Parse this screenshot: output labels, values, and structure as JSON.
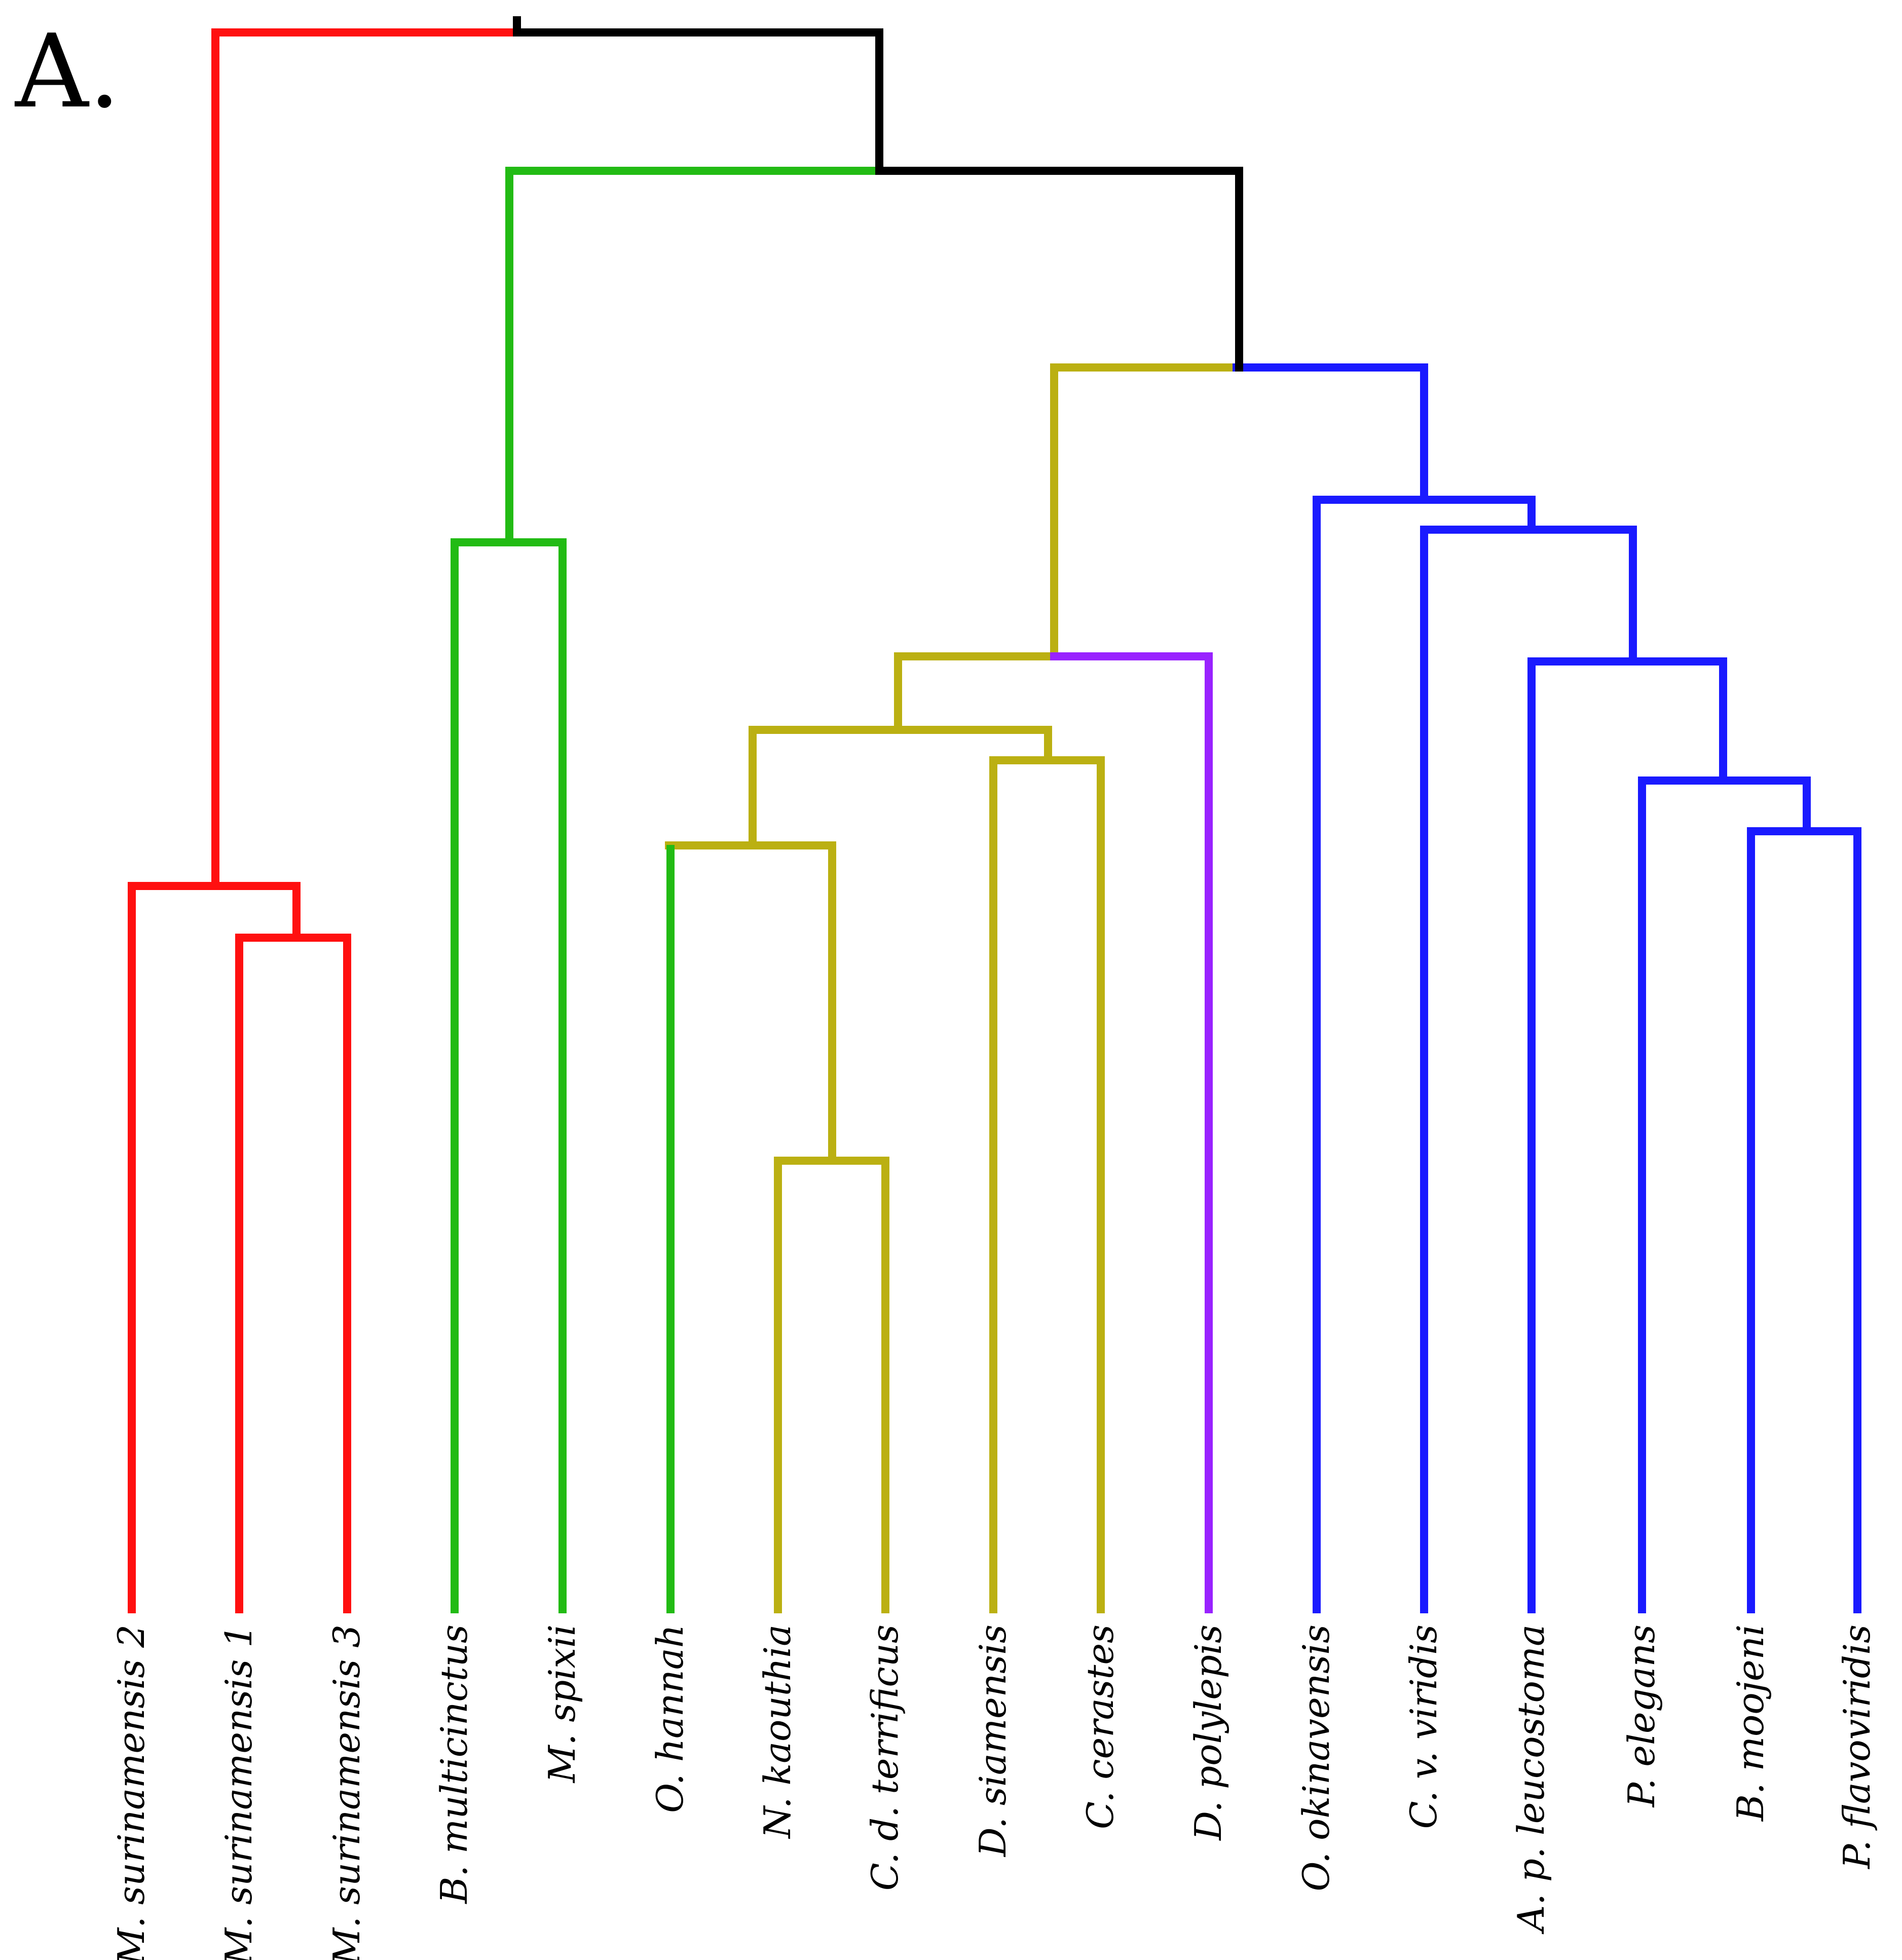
{
  "panel_label": "A.",
  "colors": {
    "red": "#ff1010",
    "green": "#22bb14",
    "olive": "#bbb012",
    "purple": "#9922ff",
    "blue": "#1a1aff",
    "black": "#000000"
  },
  "leaves": [
    {
      "id": "l1",
      "label": "M. surinamensis 2"
    },
    {
      "id": "l2",
      "label": "M. surinamensis 1"
    },
    {
      "id": "l3",
      "label": "M. surinamensis 3"
    },
    {
      "id": "l4",
      "label": "B. multicinctus"
    },
    {
      "id": "l5",
      "label": "M. spixii"
    },
    {
      "id": "l6",
      "label": "O. hannah"
    },
    {
      "id": "l7",
      "label": "N. kaouthia"
    },
    {
      "id": "l8",
      "label": "C. d. terrificus"
    },
    {
      "id": "l9",
      "label": "D. siamensis"
    },
    {
      "id": "l10",
      "label": "C. cerastes"
    },
    {
      "id": "l11",
      "label": "D. polylepis"
    },
    {
      "id": "l12",
      "label": "O. okinavensis"
    },
    {
      "id": "l13",
      "label": "C. v. viridis"
    },
    {
      "id": "l14",
      "label": "A. p. leucostoma"
    },
    {
      "id": "l15",
      "label": "P. elegans"
    },
    {
      "id": "l16",
      "label": "B. moojeni"
    },
    {
      "id": "l17",
      "label": "P. flavoviridis"
    }
  ]
}
